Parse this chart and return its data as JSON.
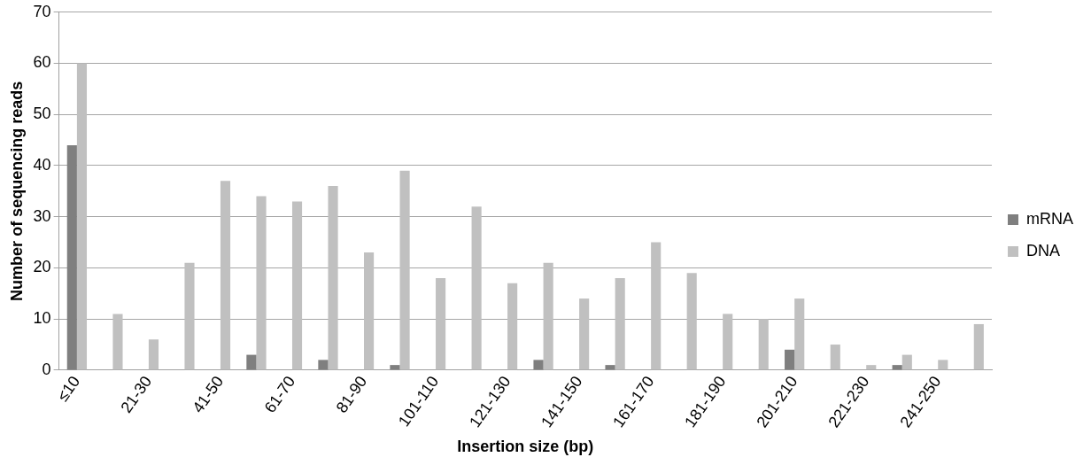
{
  "chart_data": {
    "type": "bar",
    "xlabel": "Insertion size (bp)",
    "ylabel": "Number of sequencing reads",
    "categories": [
      "≤10",
      null,
      "21-30",
      null,
      "41-50",
      null,
      "61-70",
      null,
      "81-90",
      null,
      "101-110",
      null,
      "121-130",
      null,
      "141-150",
      null,
      "161-170",
      null,
      "181-190",
      null,
      "201-210",
      null,
      "221-230",
      null,
      "241-250",
      null
    ],
    "series": [
      {
        "name": "mRNA",
        "color": "#7f7f7f",
        "values": [
          44,
          0,
          0,
          0,
          0,
          3,
          0,
          2,
          0,
          1,
          0,
          0,
          0,
          2,
          0,
          1,
          0,
          0,
          0,
          0,
          4,
          0,
          0,
          1,
          0,
          0
        ]
      },
      {
        "name": "DNA",
        "color": "#c0c0c0",
        "values": [
          60,
          11,
          6,
          21,
          37,
          34,
          33,
          36,
          23,
          39,
          18,
          32,
          17,
          21,
          14,
          18,
          25,
          19,
          11,
          10,
          14,
          5,
          1,
          3,
          2,
          9
        ]
      }
    ],
    "ylim": [
      0,
      70
    ],
    "yticks": [
      0,
      10,
      20,
      30,
      40,
      50,
      60,
      70
    ],
    "grid": "y",
    "legend": "right"
  }
}
